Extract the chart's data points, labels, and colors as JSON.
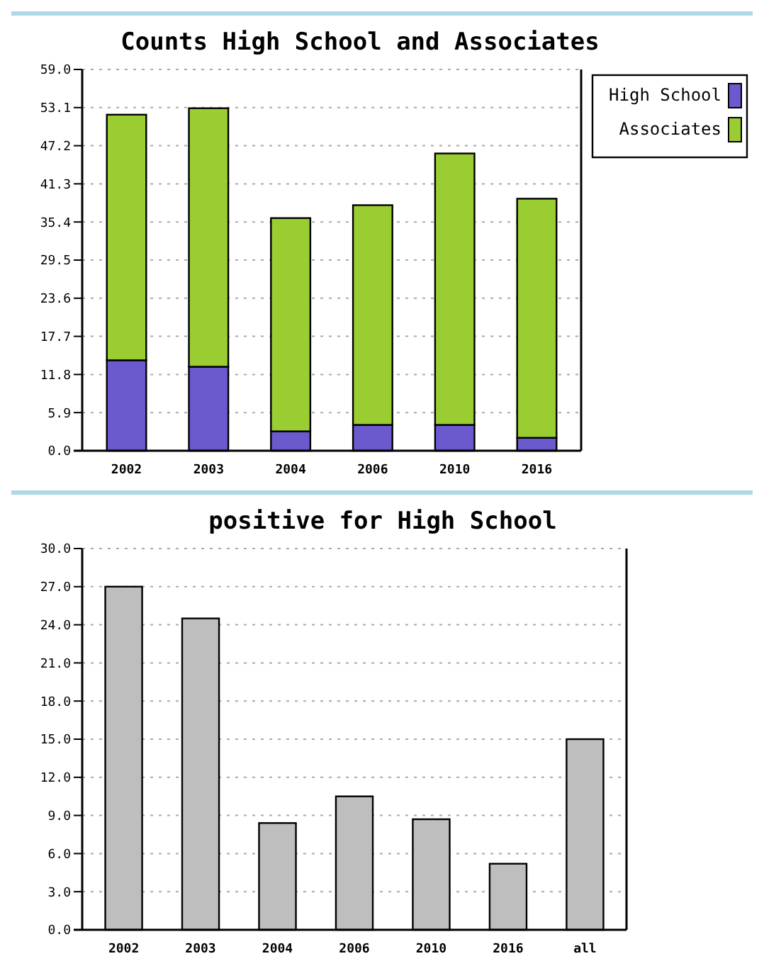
{
  "chart_data": [
    {
      "type": "bar",
      "title": "Counts High School and Associates",
      "categories": [
        "2002",
        "2003",
        "2004",
        "2006",
        "2010",
        "2016"
      ],
      "stacked": true,
      "series": [
        {
          "name": "High School",
          "color": "#6a5acd",
          "values": [
            14,
            13,
            3,
            4,
            4,
            2
          ]
        },
        {
          "name": "Associates",
          "color": "#9acd32",
          "values": [
            38,
            40,
            33,
            34,
            42,
            37
          ]
        }
      ],
      "ylim": [
        0,
        59
      ],
      "yticks": [
        {
          "value": 0,
          "label": "0.0"
        },
        {
          "value": 5.9,
          "label": "5.9"
        },
        {
          "value": 11.8,
          "label": "11.8"
        },
        {
          "value": 17.7,
          "label": "17.7"
        },
        {
          "value": 23.6,
          "label": "23.6"
        },
        {
          "value": 29.5,
          "label": "29.5"
        },
        {
          "value": 35.4,
          "label": "35.4"
        },
        {
          "value": 41.3,
          "label": "41.3"
        },
        {
          "value": 47.2,
          "label": "47.2"
        },
        {
          "value": 53.1,
          "label": "53.1"
        },
        {
          "value": 59,
          "label": "59.0"
        }
      ],
      "grid": "y",
      "legend": "top right"
    },
    {
      "type": "bar",
      "title": "positive for High School",
      "categories": [
        "2002",
        "2003",
        "2004",
        "2006",
        "2010",
        "2016",
        "all"
      ],
      "series": [
        {
          "color": "#bebebe",
          "values": [
            27,
            24.5,
            8.4,
            10.5,
            8.7,
            5.2,
            15.0
          ]
        }
      ],
      "ylim": [
        0,
        30
      ],
      "yticks": [
        {
          "value": 0,
          "label": "0.0"
        },
        {
          "value": 3,
          "label": "3.0"
        },
        {
          "value": 6,
          "label": "6.0"
        },
        {
          "value": 9,
          "label": "9.0"
        },
        {
          "value": 12,
          "label": "12.0"
        },
        {
          "value": 15,
          "label": "15.0"
        },
        {
          "value": 18,
          "label": "18.0"
        },
        {
          "value": 21,
          "label": "21.0"
        },
        {
          "value": 24,
          "label": "24.0"
        },
        {
          "value": 27,
          "label": "27.0"
        },
        {
          "value": 30,
          "label": "30.0"
        }
      ],
      "grid": "y",
      "legend": false
    }
  ]
}
